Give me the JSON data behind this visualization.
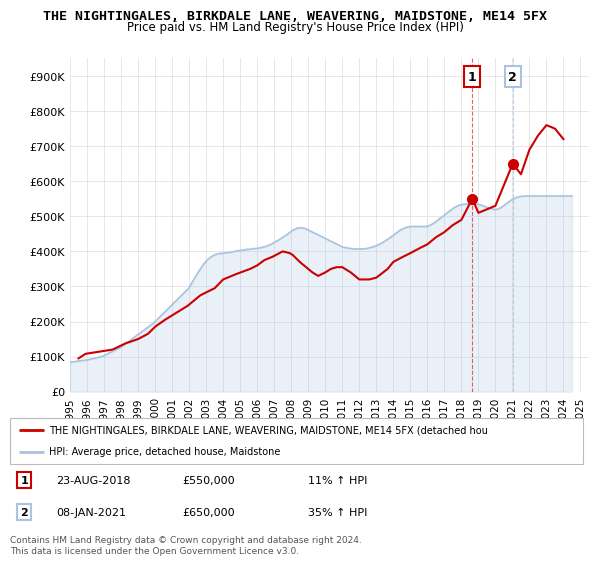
{
  "title_line1": "THE NIGHTINGALES, BIRKDALE LANE, WEAVERING, MAIDSTONE, ME14 5FX",
  "title_line2": "Price paid vs. HM Land Registry's House Price Index (HPI)",
  "ylim": [
    0,
    950000
  ],
  "yticks": [
    0,
    100000,
    200000,
    300000,
    400000,
    500000,
    600000,
    700000,
    800000,
    900000
  ],
  "ytick_labels": [
    "£0",
    "£100K",
    "£200K",
    "£300K",
    "£400K",
    "£500K",
    "£600K",
    "£700K",
    "£800K",
    "£900K"
  ],
  "xlim_start": 1995.0,
  "xlim_end": 2025.5,
  "hpi_color": "#aac4e0",
  "price_color": "#cc0000",
  "marker1_date": 2018.644,
  "marker1_price": 550000,
  "marker1_label": "1",
  "marker2_date": 2021.019,
  "marker2_price": 650000,
  "marker2_label": "2",
  "annotation1": [
    "1",
    "23-AUG-2018",
    "£550,000",
    "11% ↑ HPI"
  ],
  "annotation2": [
    "2",
    "08-JAN-2021",
    "£650,000",
    "35% ↑ HPI"
  ],
  "legend_line1": "THE NIGHTINGALES, BIRKDALE LANE, WEAVERING, MAIDSTONE, ME14 5FX (detached hou",
  "legend_line2": "HPI: Average price, detached house, Maidstone",
  "footer": "Contains HM Land Registry data © Crown copyright and database right 2024.\nThis data is licensed under the Open Government Licence v3.0.",
  "xtick_years": [
    1995,
    1996,
    1997,
    1998,
    1999,
    2000,
    2001,
    2002,
    2003,
    2004,
    2005,
    2006,
    2007,
    2008,
    2009,
    2010,
    2011,
    2012,
    2013,
    2014,
    2015,
    2016,
    2017,
    2018,
    2019,
    2020,
    2021,
    2022,
    2023,
    2024,
    2025
  ],
  "hpi_x": [
    1995.0,
    1995.083,
    1995.167,
    1995.25,
    1995.333,
    1995.417,
    1995.5,
    1995.583,
    1995.667,
    1995.75,
    1995.833,
    1995.917,
    1996.0,
    1996.083,
    1996.167,
    1996.25,
    1996.333,
    1996.417,
    1996.5,
    1996.583,
    1996.667,
    1996.75,
    1996.833,
    1996.917,
    1997.0,
    1997.083,
    1997.167,
    1997.25,
    1997.333,
    1997.417,
    1997.5,
    1997.583,
    1997.667,
    1997.75,
    1997.833,
    1997.917,
    1998.0,
    1998.083,
    1998.167,
    1998.25,
    1998.333,
    1998.417,
    1998.5,
    1998.583,
    1998.667,
    1998.75,
    1998.833,
    1998.917,
    1999.0,
    1999.083,
    1999.167,
    1999.25,
    1999.333,
    1999.417,
    1999.5,
    1999.583,
    1999.667,
    1999.75,
    1999.833,
    1999.917,
    2000.0,
    2000.083,
    2000.167,
    2000.25,
    2000.333,
    2000.417,
    2000.5,
    2000.583,
    2000.667,
    2000.75,
    2000.833,
    2000.917,
    2001.0,
    2001.083,
    2001.167,
    2001.25,
    2001.333,
    2001.417,
    2001.5,
    2001.583,
    2001.667,
    2001.75,
    2001.833,
    2001.917,
    2002.0,
    2002.083,
    2002.167,
    2002.25,
    2002.333,
    2002.417,
    2002.5,
    2002.583,
    2002.667,
    2002.75,
    2002.833,
    2002.917,
    2003.0,
    2003.083,
    2003.167,
    2003.25,
    2003.333,
    2003.417,
    2003.5,
    2003.583,
    2003.667,
    2003.75,
    2003.833,
    2003.917,
    2004.0,
    2004.083,
    2004.167,
    2004.25,
    2004.333,
    2004.417,
    2004.5,
    2004.583,
    2004.667,
    2004.75,
    2004.833,
    2004.917,
    2005.0,
    2005.083,
    2005.167,
    2005.25,
    2005.333,
    2005.417,
    2005.5,
    2005.583,
    2005.667,
    2005.75,
    2005.833,
    2005.917,
    2006.0,
    2006.083,
    2006.167,
    2006.25,
    2006.333,
    2006.417,
    2006.5,
    2006.583,
    2006.667,
    2006.75,
    2006.833,
    2006.917,
    2007.0,
    2007.083,
    2007.167,
    2007.25,
    2007.333,
    2007.417,
    2007.5,
    2007.583,
    2007.667,
    2007.75,
    2007.833,
    2007.917,
    2008.0,
    2008.083,
    2008.167,
    2008.25,
    2008.333,
    2008.417,
    2008.5,
    2008.583,
    2008.667,
    2008.75,
    2008.833,
    2008.917,
    2009.0,
    2009.083,
    2009.167,
    2009.25,
    2009.333,
    2009.417,
    2009.5,
    2009.583,
    2009.667,
    2009.75,
    2009.833,
    2009.917,
    2010.0,
    2010.083,
    2010.167,
    2010.25,
    2010.333,
    2010.417,
    2010.5,
    2010.583,
    2010.667,
    2010.75,
    2010.833,
    2010.917,
    2011.0,
    2011.083,
    2011.167,
    2011.25,
    2011.333,
    2011.417,
    2011.5,
    2011.583,
    2011.667,
    2011.75,
    2011.833,
    2011.917,
    2012.0,
    2012.083,
    2012.167,
    2012.25,
    2012.333,
    2012.417,
    2012.5,
    2012.583,
    2012.667,
    2012.75,
    2012.833,
    2012.917,
    2013.0,
    2013.083,
    2013.167,
    2013.25,
    2013.333,
    2013.417,
    2013.5,
    2013.583,
    2013.667,
    2013.75,
    2013.833,
    2013.917,
    2014.0,
    2014.083,
    2014.167,
    2014.25,
    2014.333,
    2014.417,
    2014.5,
    2014.583,
    2014.667,
    2014.75,
    2014.833,
    2014.917,
    2015.0,
    2015.083,
    2015.167,
    2015.25,
    2015.333,
    2015.417,
    2015.5,
    2015.583,
    2015.667,
    2015.75,
    2015.833,
    2015.917,
    2016.0,
    2016.083,
    2016.167,
    2016.25,
    2016.333,
    2016.417,
    2016.5,
    2016.583,
    2016.667,
    2016.75,
    2016.833,
    2016.917,
    2017.0,
    2017.083,
    2017.167,
    2017.25,
    2017.333,
    2017.417,
    2017.5,
    2017.583,
    2017.667,
    2017.75,
    2017.833,
    2017.917,
    2018.0,
    2018.083,
    2018.167,
    2018.25,
    2018.333,
    2018.417,
    2018.5,
    2018.583,
    2018.667,
    2018.75,
    2018.833,
    2018.917,
    2019.0,
    2019.083,
    2019.167,
    2019.25,
    2019.333,
    2019.417,
    2019.5,
    2019.583,
    2019.667,
    2019.75,
    2019.833,
    2019.917,
    2020.0,
    2020.083,
    2020.167,
    2020.25,
    2020.333,
    2020.417,
    2020.5,
    2020.583,
    2020.667,
    2020.75,
    2020.833,
    2020.917,
    2021.0,
    2021.083,
    2021.167,
    2021.25,
    2021.333,
    2021.417,
    2021.5,
    2021.583,
    2021.667,
    2021.75,
    2021.833,
    2021.917,
    2022.0,
    2022.083,
    2022.167,
    2022.25,
    2022.333,
    2022.417,
    2022.5,
    2022.583,
    2022.667,
    2022.75,
    2022.833,
    2022.917,
    2023.0,
    2023.083,
    2023.167,
    2023.25,
    2023.333,
    2023.417,
    2023.5,
    2023.583,
    2023.667,
    2023.75,
    2023.833,
    2023.917,
    2024.0,
    2024.083,
    2024.167,
    2024.25,
    2024.333,
    2024.417,
    2024.5
  ],
  "hpi_y": [
    84000,
    84500,
    85000,
    85500,
    86000,
    87000,
    87500,
    88000,
    88500,
    89000,
    89500,
    90000,
    90500,
    91000,
    92000,
    93000,
    94000,
    95000,
    96000,
    97000,
    98000,
    99000,
    100000,
    101000,
    103000,
    105000,
    107000,
    109000,
    111000,
    113000,
    115000,
    117000,
    119000,
    121000,
    123000,
    125000,
    127000,
    130000,
    133000,
    136000,
    139000,
    142000,
    145000,
    148000,
    151000,
    154000,
    157000,
    160000,
    163000,
    166000,
    169000,
    172000,
    175000,
    178000,
    181000,
    184000,
    187000,
    190000,
    193000,
    196000,
    200000,
    204000,
    208000,
    212000,
    216000,
    220000,
    224000,
    228000,
    232000,
    236000,
    240000,
    244000,
    248000,
    252000,
    256000,
    260000,
    264000,
    268000,
    272000,
    276000,
    280000,
    284000,
    288000,
    292000,
    297000,
    304000,
    311000,
    318000,
    325000,
    332000,
    338000,
    344000,
    350000,
    356000,
    362000,
    367000,
    372000,
    376000,
    380000,
    383000,
    386000,
    388000,
    390000,
    392000,
    393000,
    394000,
    394000,
    394000,
    395000,
    395000,
    396000,
    396000,
    397000,
    397000,
    398000,
    399000,
    400000,
    401000,
    401000,
    402000,
    403000,
    403000,
    404000,
    404000,
    405000,
    406000,
    406000,
    406000,
    407000,
    408000,
    408000,
    408000,
    409000,
    409000,
    410000,
    411000,
    412000,
    413000,
    414000,
    416000,
    417000,
    419000,
    421000,
    423000,
    425000,
    428000,
    430000,
    432000,
    435000,
    437000,
    440000,
    443000,
    445000,
    448000,
    451000,
    454000,
    457000,
    460000,
    462000,
    464000,
    466000,
    467000,
    467000,
    467000,
    467000,
    466000,
    465000,
    463000,
    461000,
    459000,
    457000,
    455000,
    453000,
    451000,
    449000,
    447000,
    445000,
    443000,
    441000,
    439000,
    437000,
    435000,
    433000,
    431000,
    429000,
    427000,
    425000,
    423000,
    421000,
    419000,
    417000,
    415000,
    413000,
    412000,
    411000,
    410000,
    409000,
    409000,
    408000,
    408000,
    407000,
    407000,
    407000,
    407000,
    407000,
    407000,
    407000,
    407000,
    408000,
    408000,
    409000,
    410000,
    411000,
    412000,
    413000,
    415000,
    416000,
    418000,
    420000,
    422000,
    424000,
    427000,
    429000,
    432000,
    434000,
    437000,
    440000,
    443000,
    446000,
    449000,
    452000,
    455000,
    458000,
    461000,
    463000,
    465000,
    467000,
    468000,
    469000,
    470000,
    471000,
    471000,
    471000,
    471000,
    471000,
    471000,
    471000,
    471000,
    471000,
    471000,
    471000,
    471000,
    472000,
    473000,
    475000,
    477000,
    479000,
    482000,
    485000,
    488000,
    491000,
    494000,
    497000,
    500000,
    503000,
    507000,
    510000,
    513000,
    516000,
    519000,
    522000,
    525000,
    527000,
    529000,
    531000,
    532000,
    533000,
    534000,
    535000,
    535000,
    535000,
    535000,
    535000,
    535000,
    535000,
    535000,
    535000,
    535000,
    534000,
    533000,
    532000,
    530000,
    529000,
    527000,
    526000,
    524000,
    523000,
    522000,
    521000,
    520000,
    519000,
    520000,
    521000,
    523000,
    525000,
    528000,
    531000,
    534000,
    537000,
    540000,
    543000,
    546000,
    548000,
    550000,
    552000,
    554000,
    555000,
    556000,
    557000,
    557000,
    558000,
    558000,
    558000,
    558000,
    558000,
    558000,
    558000,
    558000,
    558000,
    558000,
    558000,
    558000,
    558000,
    558000,
    558000,
    558000,
    558000,
    558000,
    558000,
    558000,
    558000,
    558000,
    558000,
    558000,
    558000,
    558000,
    558000,
    558000,
    558000,
    558000,
    558000,
    558000,
    558000,
    558000,
    558000
  ],
  "price_x": [
    1995.5,
    1995.917,
    1997.5,
    1998.25,
    1999.0,
    1999.583,
    2000.0,
    2000.583,
    2001.25,
    2001.917,
    2002.667,
    2003.5,
    2004.0,
    2004.75,
    2005.583,
    2006.0,
    2006.417,
    2006.917,
    2007.5,
    2007.917,
    2008.083,
    2008.5,
    2009.25,
    2009.583,
    2010.0,
    2010.333,
    2010.667,
    2011.0,
    2011.5,
    2012.0,
    2012.583,
    2013.0,
    2013.667,
    2014.0,
    2014.583,
    2015.0,
    2015.583,
    2016.0,
    2016.5,
    2017.0,
    2017.5,
    2018.0,
    2018.644,
    2019.0,
    2019.5,
    2020.0,
    2021.019,
    2021.5,
    2022.0,
    2022.5,
    2023.0,
    2023.5,
    2024.0
  ],
  "price_y": [
    95000,
    108000,
    120000,
    137500,
    150000,
    165000,
    185000,
    205000,
    225000,
    245000,
    275000,
    295000,
    320000,
    335000,
    350000,
    360000,
    375000,
    385000,
    400000,
    395000,
    390000,
    370000,
    340000,
    330000,
    340000,
    350000,
    355000,
    355000,
    340000,
    320000,
    320000,
    325000,
    350000,
    370000,
    385000,
    395000,
    410000,
    420000,
    440000,
    455000,
    475000,
    490000,
    550000,
    510000,
    520000,
    530000,
    650000,
    620000,
    690000,
    730000,
    760000,
    750000,
    720000
  ]
}
